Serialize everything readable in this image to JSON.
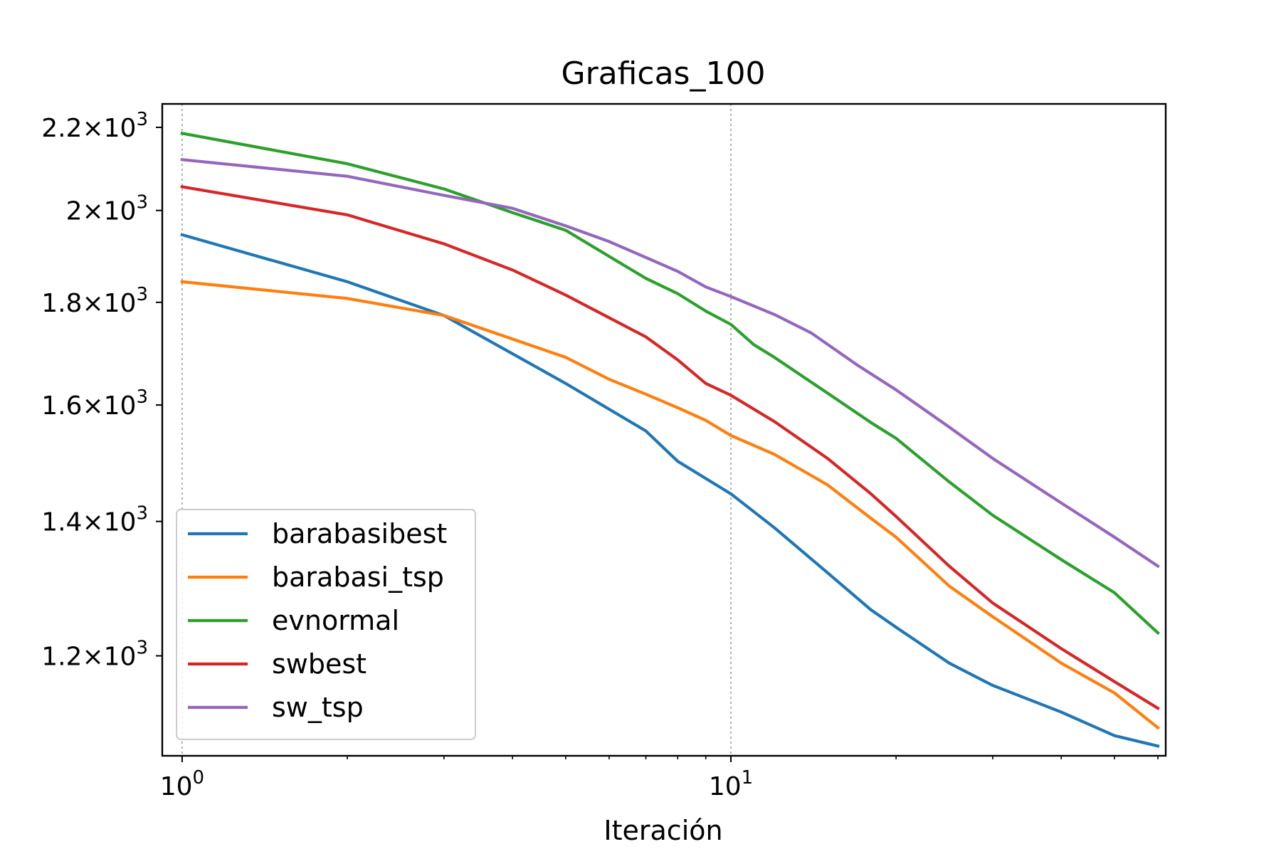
{
  "chart_data": {
    "type": "line",
    "title": "Graficas_100",
    "xlabel": "Iteración",
    "ylabel": "",
    "xscale": "log",
    "yscale": "log",
    "xlim": [
      0.92,
      62
    ],
    "ylim": [
      1070,
      2260
    ],
    "grid": "vertical dotted at major x ticks",
    "legend_position": "lower left",
    "x_major_ticks": [
      {
        "value": 1,
        "base": "10",
        "exp": "0"
      },
      {
        "value": 10,
        "base": "10",
        "exp": "1"
      }
    ],
    "x_minor_ticks": [
      2,
      3,
      4,
      5,
      6,
      7,
      8,
      9,
      20,
      30,
      40,
      50,
      60
    ],
    "y_ticks": [
      {
        "value": 1200,
        "mant": "1.2",
        "base": "10",
        "exp": "3"
      },
      {
        "value": 1400,
        "mant": "1.4",
        "base": "10",
        "exp": "3"
      },
      {
        "value": 1600,
        "mant": "1.6",
        "base": "10",
        "exp": "3"
      },
      {
        "value": 1800,
        "mant": "1.8",
        "base": "10",
        "exp": "3"
      },
      {
        "value": 2000,
        "mant": "2",
        "base": "10",
        "exp": "3"
      },
      {
        "value": 2200,
        "mant": "2.2",
        "base": "10",
        "exp": "3"
      }
    ],
    "series": [
      {
        "name": "barabasibest",
        "color": "#1f77b4",
        "x": [
          1,
          2,
          3,
          5,
          7,
          8,
          10,
          12,
          15,
          18,
          20,
          25,
          30,
          40,
          50,
          60
        ],
        "y": [
          1945,
          1843,
          1773,
          1640,
          1553,
          1500,
          1445,
          1390,
          1320,
          1265,
          1240,
          1190,
          1160,
          1125,
          1095,
          1082
        ]
      },
      {
        "name": "barabasi_tsp",
        "color": "#ff7f0e",
        "x": [
          1,
          2,
          3,
          5,
          6,
          7,
          8,
          9,
          10,
          12,
          15,
          18,
          20,
          25,
          30,
          40,
          50,
          60
        ],
        "y": [
          1843,
          1808,
          1773,
          1690,
          1648,
          1620,
          1595,
          1572,
          1545,
          1512,
          1460,
          1405,
          1375,
          1300,
          1255,
          1190,
          1150,
          1105
        ]
      },
      {
        "name": "evnormal",
        "color": "#2ca02c",
        "x": [
          1,
          2,
          3,
          4,
          5,
          7,
          8,
          9,
          10,
          11,
          12,
          15,
          18,
          20,
          25,
          30,
          40,
          50,
          60
        ],
        "y": [
          2185,
          2110,
          2050,
          1995,
          1955,
          1850,
          1818,
          1782,
          1755,
          1715,
          1690,
          1622,
          1568,
          1540,
          1465,
          1410,
          1340,
          1290,
          1232
        ]
      },
      {
        "name": "swbest",
        "color": "#d62728",
        "x": [
          1,
          2,
          3,
          4,
          5,
          7,
          8,
          9,
          10,
          12,
          15,
          18,
          20,
          25,
          30,
          40,
          50,
          60
        ],
        "y": [
          2055,
          1990,
          1925,
          1868,
          1815,
          1730,
          1685,
          1640,
          1618,
          1570,
          1505,
          1445,
          1408,
          1330,
          1275,
          1210,
          1165,
          1130
        ]
      },
      {
        "name": "sw_tsp",
        "color": "#9467bd",
        "x": [
          1,
          2,
          3,
          4,
          5,
          6,
          7,
          8,
          9,
          10,
          12,
          14,
          17,
          20,
          25,
          30,
          40,
          50,
          60
        ],
        "y": [
          2120,
          2080,
          2035,
          2005,
          1965,
          1930,
          1895,
          1865,
          1832,
          1812,
          1775,
          1738,
          1675,
          1628,
          1560,
          1505,
          1430,
          1375,
          1330
        ]
      }
    ]
  }
}
